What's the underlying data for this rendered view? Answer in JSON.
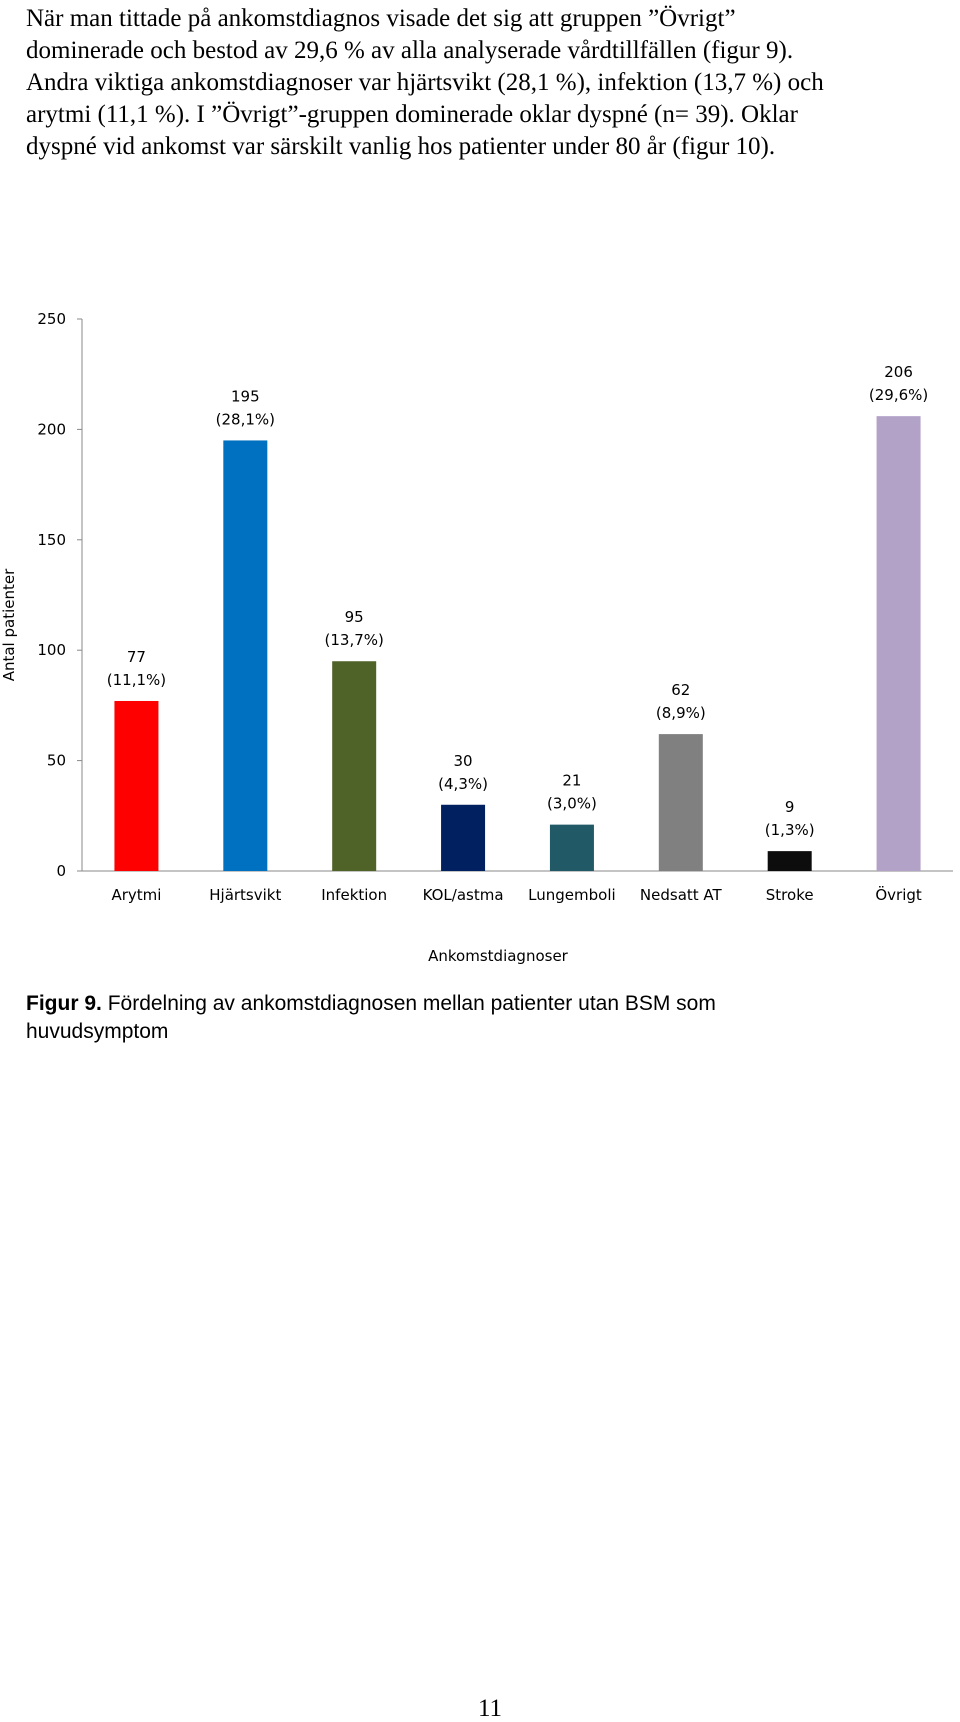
{
  "paragraph": [
    "När man tittade på ankomstdiagnos visade det sig att gruppen ”Övrigt”",
    "dominerade och bestod av 29,6 % av alla analyserade vårdtillfällen (figur 9).",
    "Andra viktiga ankomstdiagnoser var hjärtsvikt (28,1 %), infektion (13,7 %) och",
    "arytmi (11,1 %). I ”Övrigt”-gruppen dominerade oklar dyspné (n= 39). Oklar",
    "dyspné vid ankomst var särskilt vanlig hos patienter under 80 år (figur 10)."
  ],
  "chart_data": {
    "type": "bar",
    "x_label": "Ankomstdiagnoser",
    "y_label": "Antal  patienter",
    "categories": [
      "Arytmi",
      "Hjärtsvikt",
      "Infektion",
      "KOL/astma",
      "Lungemboli",
      "Nedsatt AT",
      "Stroke",
      "Övrigt"
    ],
    "values": [
      77,
      195,
      95,
      30,
      21,
      62,
      9,
      206
    ],
    "value_labels": [
      [
        "77",
        "(11,1%)"
      ],
      [
        "195",
        "(28,1%)"
      ],
      [
        "95",
        "(13,7%)"
      ],
      [
        "30",
        "(4,3%)"
      ],
      [
        "21",
        "(3,0%)"
      ],
      [
        "62",
        "(8,9%)"
      ],
      [
        "9",
        "(1,3%)"
      ],
      [
        "206",
        "(29,6%)"
      ]
    ],
    "colors": [
      "#ff0000",
      "#0070c0",
      "#4f6228",
      "#002060",
      "#215967",
      "#808080",
      "#0d0d0d",
      "#b3a2c7"
    ],
    "ylim": [
      0,
      250
    ],
    "yticks": [
      0,
      50,
      100,
      150,
      200,
      250
    ],
    "grid": false
  },
  "caption": {
    "label": "Figur 9.",
    "lines": [
      "Fördelning av ankomstdiagnosen mellan patienter utan BSM som",
      "huvudsymptom"
    ]
  },
  "page_number": "11"
}
